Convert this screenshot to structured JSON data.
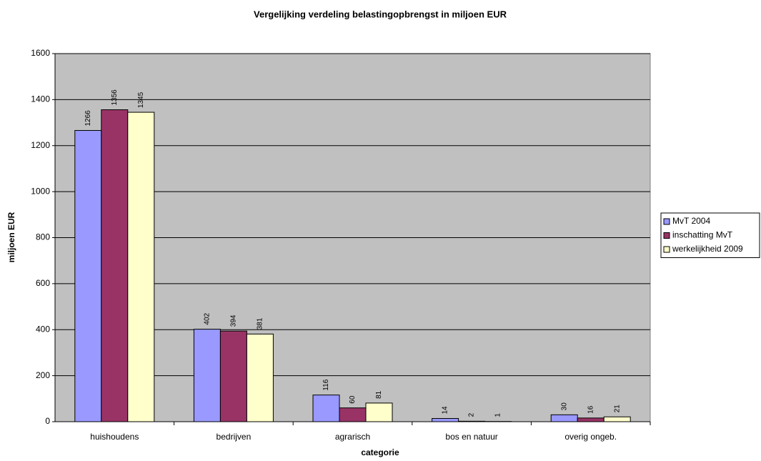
{
  "chart_data": {
    "type": "bar",
    "title": "Vergelijking verdeling belastingopbrengst in miljoen EUR",
    "x_label": "categorie",
    "y_label": "miljoen EUR",
    "categories": [
      "huishoudens",
      "bedrijven",
      "agrarisch",
      "bos en natuur",
      "overig ongeb."
    ],
    "series": [
      {
        "name": "MvT 2004",
        "color": "#9999ff",
        "values": [
          1266,
          402,
          116,
          14,
          30
        ]
      },
      {
        "name": "inschatting MvT",
        "color": "#993366",
        "values": [
          1356,
          394,
          60,
          2,
          16
        ]
      },
      {
        "name": "werkelijkheid 2009",
        "color": "#ffffcc",
        "values": [
          1345,
          381,
          81,
          1,
          21
        ]
      }
    ],
    "ylim": [
      0,
      1600
    ],
    "yticks": [
      0,
      200,
      400,
      600,
      800,
      1000,
      1200,
      1400,
      1600
    ],
    "grid": true,
    "legend": "right",
    "plot_background": "#c0c0c0"
  }
}
